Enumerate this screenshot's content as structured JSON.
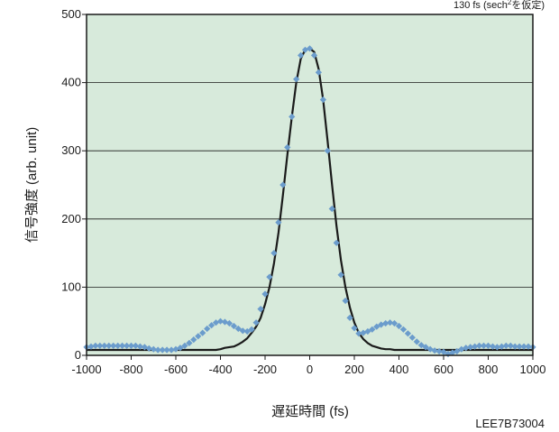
{
  "chart_data": {
    "type": "scatter",
    "annotation_prefix": "130 fs (sech",
    "annotation_sup": "2",
    "annotation_suffix": "を仮定)",
    "xlabel": "遅延時間 (fs)",
    "ylabel": "信号強度 (arb. unit)",
    "code": "LEE7B73004",
    "xlim": [
      -1000,
      1000
    ],
    "ylim": [
      0,
      500
    ],
    "xticks": [
      -1000,
      -800,
      -600,
      -400,
      -200,
      0,
      200,
      400,
      600,
      800,
      1000
    ],
    "yticks": [
      0,
      100,
      200,
      300,
      400,
      500
    ],
    "grid": "horizontal",
    "plot_background": "#d7eadb",
    "series": [
      {
        "kind": "markers",
        "marker": "diamond",
        "color": "#6b9ccc",
        "x": [
          -1000,
          -980,
          -960,
          -940,
          -920,
          -900,
          -880,
          -860,
          -840,
          -820,
          -800,
          -780,
          -760,
          -740,
          -720,
          -700,
          -680,
          -660,
          -640,
          -620,
          -600,
          -580,
          -560,
          -540,
          -520,
          -500,
          -480,
          -460,
          -440,
          -420,
          -400,
          -380,
          -360,
          -340,
          -320,
          -300,
          -280,
          -260,
          -240,
          -220,
          -200,
          -180,
          -160,
          -140,
          -120,
          -100,
          -80,
          -60,
          -40,
          -20,
          0,
          20,
          40,
          60,
          80,
          100,
          120,
          140,
          160,
          180,
          200,
          220,
          240,
          260,
          280,
          300,
          320,
          340,
          360,
          380,
          400,
          420,
          440,
          460,
          480,
          500,
          520,
          540,
          560,
          580,
          600,
          620,
          640,
          660,
          680,
          700,
          720,
          740,
          760,
          780,
          800,
          820,
          840,
          860,
          880,
          900,
          920,
          940,
          960,
          980,
          1000
        ],
        "y": [
          12,
          13,
          14,
          14,
          14,
          14,
          14,
          14,
          14,
          14,
          14,
          14,
          13,
          12,
          10,
          9,
          8,
          8,
          8,
          8,
          9,
          11,
          14,
          18,
          23,
          28,
          33,
          39,
          44,
          48,
          50,
          49,
          47,
          43,
          39,
          36,
          35,
          38,
          48,
          68,
          90,
          115,
          150,
          195,
          250,
          305,
          350,
          405,
          440,
          448,
          450,
          440,
          415,
          375,
          300,
          215,
          165,
          118,
          80,
          55,
          40,
          32,
          33,
          35,
          38,
          42,
          45,
          47,
          48,
          47,
          43,
          38,
          32,
          26,
          20,
          15,
          12,
          9,
          7,
          6,
          5,
          2,
          4,
          6,
          9,
          11,
          12,
          13,
          14,
          14,
          14,
          13,
          12,
          13,
          14,
          14,
          13,
          13,
          13,
          13,
          12
        ]
      },
      {
        "kind": "line",
        "color": "#1a1a1a",
        "x": [
          -1000,
          -600,
          -420,
          -400,
          -380,
          -360,
          -340,
          -320,
          -300,
          -280,
          -260,
          -240,
          -220,
          -200,
          -180,
          -160,
          -140,
          -120,
          -100,
          -80,
          -60,
          -40,
          -20,
          0,
          20,
          40,
          60,
          80,
          100,
          120,
          140,
          160,
          180,
          200,
          220,
          240,
          260,
          280,
          300,
          320,
          340,
          360,
          380,
          420,
          600,
          1000
        ],
        "y": [
          8,
          8,
          8,
          9,
          11,
          12,
          13,
          16,
          20,
          25,
          33,
          42,
          55,
          75,
          100,
          135,
          180,
          235,
          295,
          350,
          400,
          435,
          448,
          450,
          445,
          420,
          375,
          315,
          250,
          190,
          140,
          100,
          70,
          48,
          33,
          24,
          18,
          14,
          12,
          10,
          9,
          9,
          8,
          8,
          8,
          8
        ]
      }
    ]
  }
}
